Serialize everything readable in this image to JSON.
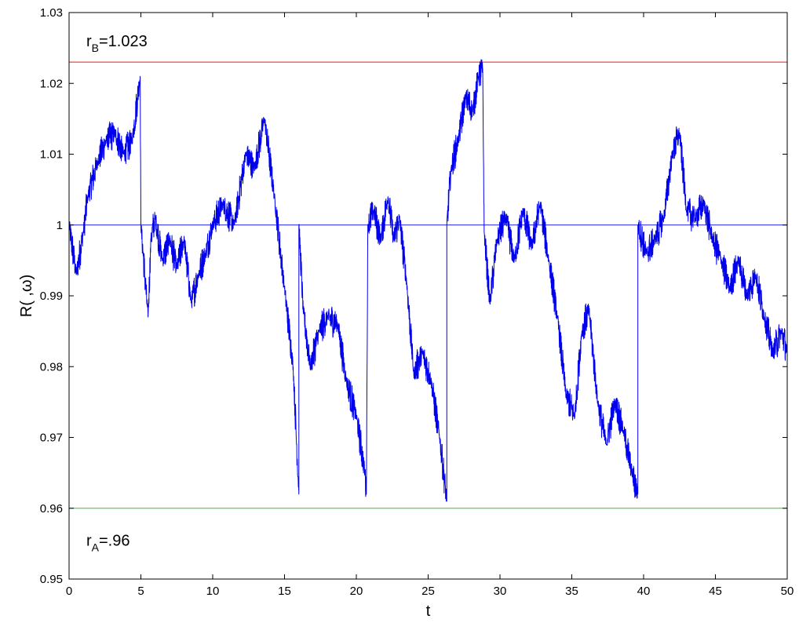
{
  "chart_data": {
    "type": "line",
    "xlabel": "t",
    "ylabel": "R( ,ω)",
    "xlim": [
      0,
      50
    ],
    "ylim": [
      0.95,
      1.03
    ],
    "x_ticks": [
      0,
      5,
      10,
      15,
      20,
      25,
      30,
      35,
      40,
      45,
      50
    ],
    "x_tick_labels": [
      "0",
      "5",
      "10",
      "15",
      "20",
      "25",
      "30",
      "35",
      "40",
      "45",
      "50"
    ],
    "y_ticks": [
      0.95,
      0.96,
      0.97,
      0.98,
      0.99,
      1.0,
      1.01,
      1.02,
      1.03
    ],
    "y_tick_labels": [
      "0.95",
      "0.96",
      "0.97",
      "0.98",
      "0.99",
      "1",
      "1.01",
      "1.02",
      "1.03"
    ],
    "grid": false,
    "reference_lines": [
      {
        "y": 1.023,
        "color": "#e31a1c"
      },
      {
        "y": 1.0,
        "color": "#1f1fe0"
      },
      {
        "y": 0.96,
        "color": "#22cc22"
      }
    ],
    "annotations": [
      {
        "symbol": "r",
        "subscript": "B",
        "text": "=1.023",
        "x": 1.2,
        "y": 1.026
      },
      {
        "symbol": "r",
        "subscript": "A",
        "text": "=.96",
        "x": 1.2,
        "y": 0.9555
      }
    ],
    "series": [
      {
        "color": "#0000ee",
        "x": [
          0,
          0.5,
          1.0,
          1.3,
          2.0,
          2.6,
          3.2,
          3.8,
          4.4,
          4.95,
          5.0,
          5.5,
          5.7,
          6.0,
          6.5,
          7.0,
          7.5,
          8.0,
          8.5,
          9.0,
          9.5,
          10.0,
          10.7,
          11.5,
          12.3,
          12.9,
          13.6,
          14.3,
          15.0,
          15.6,
          16.0,
          16.0,
          16.3,
          16.8,
          17.4,
          18.0,
          18.7,
          19.3,
          20.0,
          20.6,
          20.7,
          20.8,
          21.2,
          21.7,
          22.2,
          22.6,
          23.0,
          23.5,
          24.0,
          24.6,
          25.2,
          25.8,
          26.3,
          26.3,
          26.6,
          27.1,
          27.6,
          28.1,
          28.5,
          28.8,
          28.9,
          29.3,
          29.8,
          30.4,
          31.0,
          31.6,
          32.2,
          32.8,
          33.4,
          34.0,
          34.6,
          35.2,
          35.7,
          36.2,
          36.8,
          37.4,
          38.0,
          38.6,
          39.2,
          39.6,
          39.6,
          40.2,
          40.8,
          41.4,
          42.0,
          42.5,
          43.0,
          43.6,
          44.2,
          44.8,
          45.4,
          46.0,
          46.6,
          47.2,
          47.8,
          48.4,
          49.0,
          49.6,
          50.0
        ],
        "y": [
          1.0,
          0.993,
          0.999,
          1.004,
          1.009,
          1.012,
          1.013,
          1.01,
          1.012,
          1.021,
          1.0,
          0.987,
          0.998,
          1.001,
          0.995,
          0.998,
          0.994,
          0.998,
          0.989,
          0.993,
          0.996,
          1.0,
          1.003,
          1.0,
          1.01,
          1.008,
          1.015,
          1.004,
          0.991,
          0.98,
          0.962,
          1.0,
          0.988,
          0.98,
          0.985,
          0.987,
          0.986,
          0.978,
          0.973,
          0.965,
          0.962,
          1.0,
          1.002,
          0.998,
          1.004,
          0.998,
          1.001,
          0.992,
          0.979,
          0.982,
          0.978,
          0.97,
          0.961,
          1.0,
          1.008,
          1.012,
          1.018,
          1.016,
          1.021,
          1.022,
          0.999,
          0.989,
          0.998,
          1.001,
          0.995,
          1.002,
          0.997,
          1.003,
          0.995,
          0.987,
          0.976,
          0.973,
          0.985,
          0.988,
          0.975,
          0.969,
          0.975,
          0.971,
          0.965,
          0.962,
          1.0,
          0.996,
          0.998,
          1.001,
          1.01,
          1.013,
          1.002,
          1.001,
          1.003,
          0.998,
          0.995,
          0.991,
          0.995,
          0.99,
          0.993,
          0.987,
          0.982,
          0.985,
          0.982
        ]
      }
    ]
  }
}
